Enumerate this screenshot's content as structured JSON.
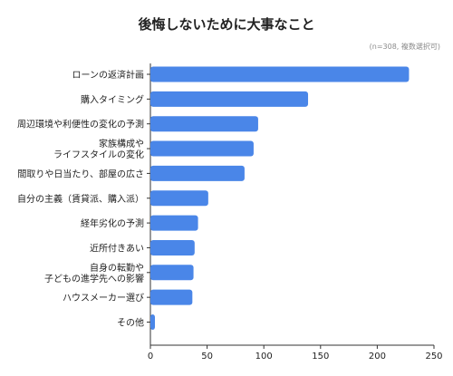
{
  "chart_data": {
    "type": "bar",
    "orientation": "horizontal",
    "title": "後悔しないために大事なこと",
    "note": "(n=308, 複数選択可)",
    "categories": [
      [
        "ローンの返済計画"
      ],
      [
        "購入タイミング"
      ],
      [
        "周辺環境や利便性の変化の予測"
      ],
      [
        "家族構成や",
        "ライフスタイルの変化"
      ],
      [
        "間取りや日当たり、部屋の広さ"
      ],
      [
        "自分の主義（賃貸派、購入派）"
      ],
      [
        "経年劣化の予測"
      ],
      [
        "近所付きあい"
      ],
      [
        "自身の転勤や",
        "子どもの進学先への影響"
      ],
      [
        "ハウスメーカー選び"
      ],
      [
        "その他"
      ]
    ],
    "values": [
      228,
      139,
      95,
      91,
      83,
      51,
      42,
      39,
      38,
      37,
      4
    ],
    "xlim": [
      0,
      250
    ],
    "xticks": [
      "0",
      "50",
      "100",
      "150",
      "200",
      "250"
    ],
    "bar_color": "#4a86e8",
    "grid": false,
    "legend": "none"
  }
}
